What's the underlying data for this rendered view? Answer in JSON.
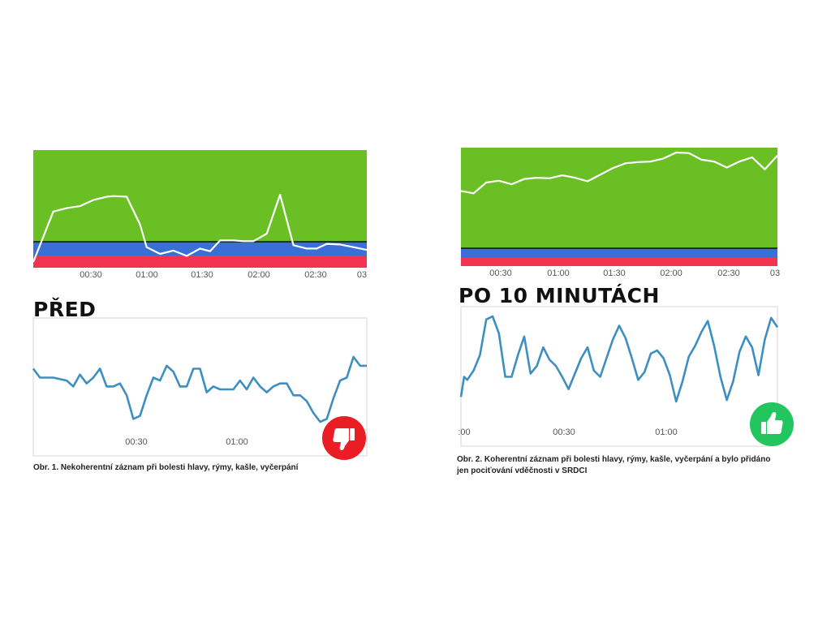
{
  "colors": {
    "coherence_green": "#6abf25",
    "medium_blue": "#3b6fd8",
    "low_red": "#f2334f",
    "hrv_line": "#3d8fc2",
    "coherence_line": "#ffffff",
    "badge_red": "#ea1c24",
    "badge_green": "#22c55e"
  },
  "left": {
    "heading": "PŘED",
    "caption": "Obr. 1. Nekoherentní záznam při bolesti hlavy, rýmy, kašle, vyčerpání",
    "badge_icon": "thumbs-down-icon"
  },
  "right": {
    "heading": "PO 10 MINUTÁCH",
    "caption_line1": "Obr. 2. Koherentní záznam při bolesti hlavy, rýmy, kašle, vyčerpání a bylo přidáno",
    "caption_line2": "jen pociťování vděčnosti v SRDCI",
    "badge_icon": "thumbs-up-icon"
  },
  "chart_data": [
    {
      "id": "left_coherence",
      "type": "line",
      "x_ticks": [
        "00:30",
        "01:00",
        "01:30",
        "02:00",
        "02:30",
        "03"
      ],
      "bands": [
        "green",
        "blue",
        "red"
      ],
      "x": [
        0,
        3,
        5,
        7,
        9,
        11,
        12,
        14,
        16,
        17,
        19,
        21,
        23,
        25,
        26.5,
        28,
        30,
        31.5,
        33,
        35,
        37,
        39,
        41,
        42.5,
        44,
        46,
        48,
        50
      ],
      "values": [
        0.0,
        0.75,
        0.8,
        0.83,
        0.92,
        0.97,
        0.98,
        0.97,
        0.56,
        0.22,
        0.12,
        0.17,
        0.09,
        0.2,
        0.16,
        0.32,
        0.32,
        0.31,
        0.31,
        0.42,
        1.0,
        0.25,
        0.2,
        0.2,
        0.27,
        0.26,
        0.22,
        0.18
      ]
    },
    {
      "id": "left_hrv",
      "type": "line",
      "x_ticks": [
        "00:30",
        "01:00"
      ],
      "x": [
        0,
        1,
        3,
        5,
        6,
        7,
        8,
        9,
        10,
        11,
        12,
        13,
        14,
        15,
        16,
        17,
        18,
        19,
        20,
        21,
        22,
        23,
        24,
        25,
        26,
        27,
        28,
        29,
        30,
        31,
        32,
        33,
        34,
        35,
        36,
        37,
        38,
        39,
        40,
        41,
        42,
        43,
        44,
        45,
        46,
        47,
        48,
        49,
        50
      ],
      "values": [
        61,
        58,
        58,
        57,
        55,
        59,
        56,
        58,
        61,
        55,
        55,
        56,
        52,
        44,
        45,
        52,
        58,
        57,
        62,
        60,
        55,
        55,
        61,
        61,
        53,
        55,
        54,
        54,
        54,
        57,
        54,
        58,
        55,
        53,
        55,
        56,
        56,
        52,
        52,
        50,
        46,
        43,
        44,
        51,
        57,
        58,
        65,
        62,
        62
      ]
    },
    {
      "id": "right_coherence",
      "type": "line",
      "x_ticks": [
        "00:30",
        "01:00",
        "01:30",
        "02:00",
        "02:30",
        "03"
      ],
      "bands": [
        "green",
        "blue",
        "red"
      ],
      "x": [
        0,
        2,
        4,
        6,
        8,
        10,
        12,
        14,
        16,
        18,
        20,
        22,
        24,
        26,
        28,
        30,
        32,
        34,
        36,
        38,
        40,
        42,
        44,
        46,
        48,
        50
      ],
      "values": [
        0.36,
        0.32,
        0.5,
        0.53,
        0.47,
        0.56,
        0.58,
        0.57,
        0.62,
        0.58,
        0.52,
        0.63,
        0.74,
        0.82,
        0.84,
        0.85,
        0.9,
        1.0,
        0.99,
        0.88,
        0.85,
        0.75,
        0.85,
        0.92,
        0.72,
        0.95
      ]
    },
    {
      "id": "right_hrv",
      "type": "line",
      "x_ticks": [
        ":00",
        "00:30",
        "01:00"
      ],
      "x": [
        0,
        0.5,
        1,
        2,
        3,
        4,
        5,
        6,
        7,
        8,
        9,
        10,
        11,
        12,
        13,
        14,
        15,
        16,
        17,
        18,
        19,
        20,
        21,
        22,
        23,
        24,
        25,
        26,
        27,
        28,
        29,
        30,
        31,
        32,
        33,
        34,
        35,
        36,
        37,
        38,
        39,
        40,
        41,
        42,
        43,
        44,
        45,
        46,
        47,
        48,
        49,
        50
      ],
      "values": [
        45,
        58,
        56,
        62,
        72,
        95,
        97,
        86,
        58,
        58,
        72,
        84,
        60,
        65,
        77,
        69,
        65,
        58,
        50,
        60,
        70,
        77,
        62,
        58,
        70,
        82,
        91,
        83,
        70,
        56,
        61,
        73,
        75,
        70,
        59,
        42,
        55,
        71,
        78,
        87,
        94,
        78,
        58,
        43,
        55,
        74,
        84,
        77,
        59,
        82,
        96,
        90
      ]
    }
  ]
}
